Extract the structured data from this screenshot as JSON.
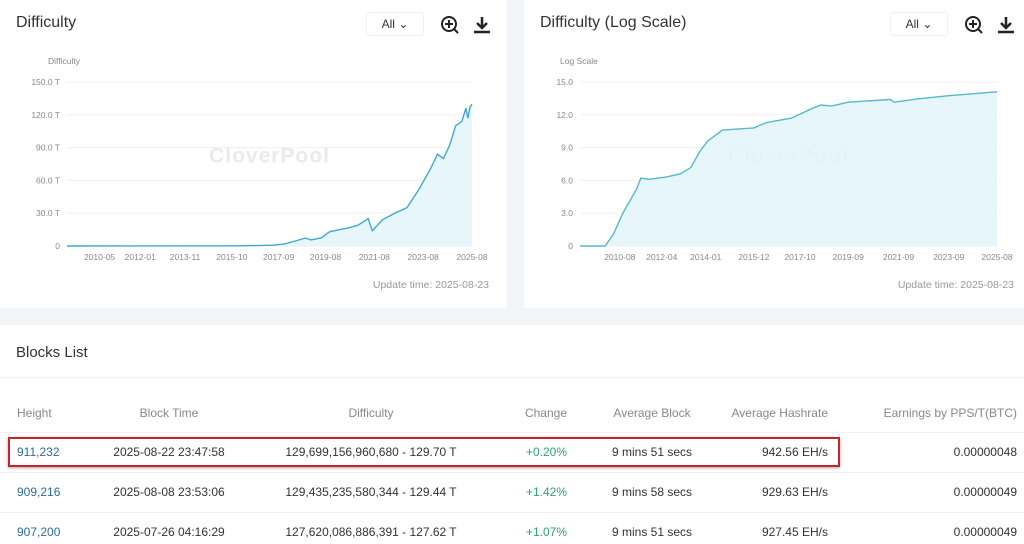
{
  "charts": [
    {
      "title": "Difficulty",
      "range": "All",
      "update": "Update time: 2025-08-23",
      "watermark": "CloverPool",
      "chart_data": {
        "type": "area",
        "ylabel": "Difficulty",
        "ylim": [
          0,
          150
        ],
        "yticks": [
          "0",
          "30.0 T",
          "60.0 T",
          "90.0 T",
          "120.0 T",
          "150.0 T"
        ],
        "ytick_values": [
          0,
          30,
          60,
          90,
          120,
          150
        ],
        "xlim": [
          "2009-01",
          "2025-08"
        ],
        "xticks": [
          "2010-05",
          "2012-01",
          "2013-11",
          "2015-10",
          "2017-09",
          "2019-08",
          "2021-08",
          "2023-08",
          "2025-08"
        ],
        "x": [
          "2009-01",
          "2016-01",
          "2017-06",
          "2017-12",
          "2018-06",
          "2018-10",
          "2019-01",
          "2019-06",
          "2019-10",
          "2020-03",
          "2020-06",
          "2020-12",
          "2021-05",
          "2021-07",
          "2021-12",
          "2022-06",
          "2022-12",
          "2023-06",
          "2023-12",
          "2024-03",
          "2024-06",
          "2024-09",
          "2024-12",
          "2025-03",
          "2025-05",
          "2025-06",
          "2025-07",
          "2025-08"
        ],
        "y": [
          0,
          0.2,
          0.7,
          1.9,
          5,
          7.2,
          5.6,
          7.5,
          13,
          15,
          16,
          19,
          25,
          14,
          24,
          30,
          35,
          52,
          72,
          84,
          80,
          92,
          110,
          114,
          126,
          117,
          127,
          129.7
        ]
      }
    },
    {
      "title": "Difficulty (Log Scale)",
      "range": "All",
      "update": "Update time: 2025-08-23",
      "watermark": "CloverPool",
      "chart_data": {
        "type": "area",
        "ylabel": "Log Scale",
        "ylim": [
          0,
          15
        ],
        "yticks": [
          "0",
          "3.0",
          "6.0",
          "9.0",
          "12.0",
          "15.0"
        ],
        "ytick_values": [
          0,
          3,
          6,
          9,
          12,
          15
        ],
        "xlim": [
          "2009-01",
          "2025-08"
        ],
        "xticks": [
          "2010-08",
          "2012-04",
          "2014-01",
          "2015-12",
          "2017-10",
          "2019-09",
          "2021-09",
          "2023-09",
          "2025-08"
        ],
        "x": [
          "2009-01",
          "2010-01",
          "2010-05",
          "2010-08",
          "2010-10",
          "2011-01",
          "2011-04",
          "2011-06",
          "2011-10",
          "2012-06",
          "2013-01",
          "2013-06",
          "2013-10",
          "2014-02",
          "2014-09",
          "2015-12",
          "2016-06",
          "2017-06",
          "2018-04",
          "2018-08",
          "2019-01",
          "2019-09",
          "2021-05",
          "2021-07",
          "2022-06",
          "2023-09",
          "2025-08"
        ],
        "y": [
          0,
          0,
          1.1,
          2.4,
          3.2,
          4.2,
          5.2,
          6.2,
          6.1,
          6.3,
          6.6,
          7.2,
          8.6,
          9.6,
          10.6,
          10.8,
          11.3,
          11.7,
          12.6,
          12.9,
          12.8,
          13.15,
          13.4,
          13.15,
          13.45,
          13.75,
          14.1
        ]
      }
    }
  ],
  "blocks": {
    "title": "Blocks List",
    "headers": [
      "Height",
      "Block Time",
      "Difficulty",
      "Change",
      "Average Block",
      "Average Hashrate",
      "Earnings by PPS/T(BTC)"
    ],
    "rows": [
      [
        "911,232",
        "2025-08-22 23:47:58",
        "129,699,156,960,680 - 129.70 T",
        "+0.20%",
        "9 mins 51 secs",
        "942.56 EH/s",
        "0.00000048"
      ],
      [
        "909,216",
        "2025-08-08 23:53:06",
        "129,435,235,580,344 - 129.44 T",
        "+1.42%",
        "9 mins 58 secs",
        "929.63 EH/s",
        "0.00000049"
      ],
      [
        "907,200",
        "2025-07-26 04:16:29",
        "127,620,086,886,391 - 127.62 T",
        "+1.07%",
        "9 mins 51 secs",
        "927.45 EH/s",
        "0.00000049"
      ]
    ]
  },
  "colors": {
    "line": "#3fa9cf",
    "fill": "#e3f4fa",
    "link": "#2b6b9a",
    "positive": "#2fa36b",
    "highlight": "#c8232c"
  }
}
